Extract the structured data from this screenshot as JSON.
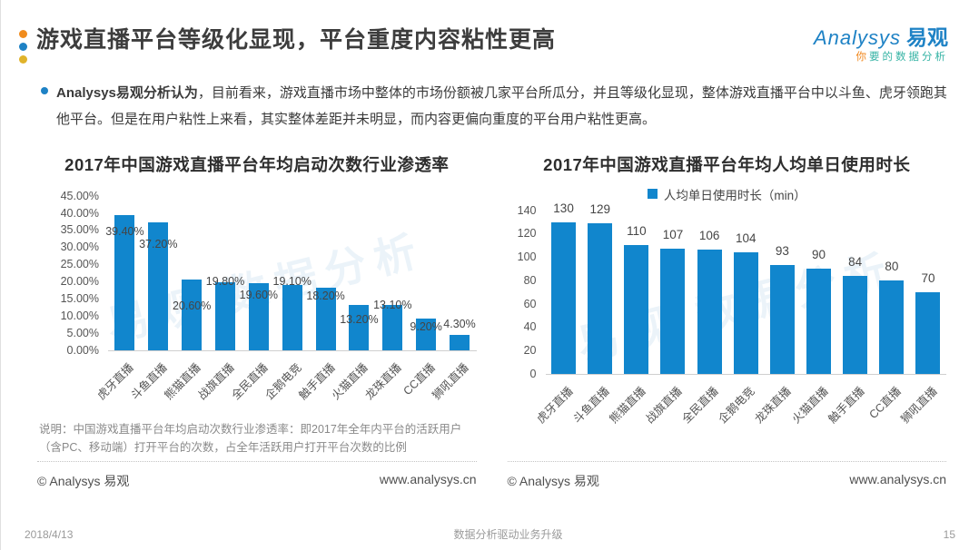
{
  "header": {
    "title": "游戏直播平台等级化显现，平台重度内容粘性更高",
    "logo": {
      "brand_en": "Analysys",
      "brand_cn": "易观",
      "tagline_first": "你",
      "tagline_rest": "要的数据分析"
    },
    "accent_colors": {
      "dot_orange": "#f08c1e",
      "dot_blue": "#1e82c5",
      "dot_gold": "#e0b32a"
    }
  },
  "summary": {
    "lead": "Analysys易观分析认为",
    "body": "，目前看来，游戏直播市场中整体的市场份额被几家平台所瓜分，并且等级化显现，整体游戏直播平台中以斗鱼、虎牙领跑其他平台。但是在用户粘性上来看，其实整体差距并未明显，而内容更偏向重度的平台用户粘性更高。"
  },
  "chart_data": [
    {
      "type": "bar",
      "title": "2017年中国游戏直播平台年均启动次数行业渗透率",
      "categories": [
        "虎牙直播",
        "斗鱼直播",
        "熊猫直播",
        "战旗直播",
        "全民直播",
        "企鹅电竞",
        "触手直播",
        "火猫直播",
        "龙珠直播",
        "CC直播",
        "狮吼直播"
      ],
      "values": [
        39.4,
        37.2,
        20.6,
        19.8,
        19.6,
        19.1,
        18.2,
        13.2,
        13.1,
        9.2,
        4.3
      ],
      "value_labels": [
        "39.40%",
        "37.20%",
        "20.60%",
        "19.80%",
        "19.60%",
        "19.10%",
        "18.20%",
        "13.20%",
        "13.10%",
        "9.20%",
        "4.30%"
      ],
      "yticks": [
        "0.00%",
        "5.00%",
        "10.00%",
        "15.00%",
        "20.00%",
        "25.00%",
        "30.00%",
        "35.00%",
        "40.00%",
        "45.00%"
      ],
      "ylim": [
        0,
        45
      ],
      "xlabel": "",
      "ylabel": "",
      "grid": false,
      "legend_position": "none",
      "bar_color": "#1186cd",
      "footnote": "说明：中国游戏直播平台年均启动次数行业渗透率：即2017年全年内平台的活跃用户（含PC、移动端）打开平台的次数，占全年活跃用户打开平台次数的比例"
    },
    {
      "type": "bar",
      "title": "2017年中国游戏直播平台年均人均单日使用时长",
      "legend": "人均单日使用时长（min）",
      "legend_position": "top",
      "categories": [
        "虎牙直播",
        "斗鱼直播",
        "熊猫直播",
        "战旗直播",
        "全民直播",
        "企鹅电竞",
        "龙珠直播",
        "火猫直播",
        "触手直播",
        "CC直播",
        "狮吼直播"
      ],
      "values": [
        130,
        129,
        110,
        107,
        106,
        104,
        93,
        90,
        84,
        80,
        70
      ],
      "value_labels": [
        "130",
        "129",
        "110",
        "107",
        "106",
        "104",
        "93",
        "90",
        "84",
        "80",
        "70"
      ],
      "yticks": [
        "0",
        "20",
        "40",
        "60",
        "80",
        "100",
        "120",
        "140"
      ],
      "ylim": [
        0,
        140
      ],
      "xlabel": "",
      "ylabel": "",
      "grid": false,
      "bar_color": "#1186cd"
    }
  ],
  "source": {
    "copyright": "© Analysys 易观",
    "website": "www.analysys.cn"
  },
  "watermark": "易观 数据分析",
  "page_footer": {
    "date": "2018/4/13",
    "slogan": "数据分析驱动业务升级",
    "page_number": "15"
  }
}
